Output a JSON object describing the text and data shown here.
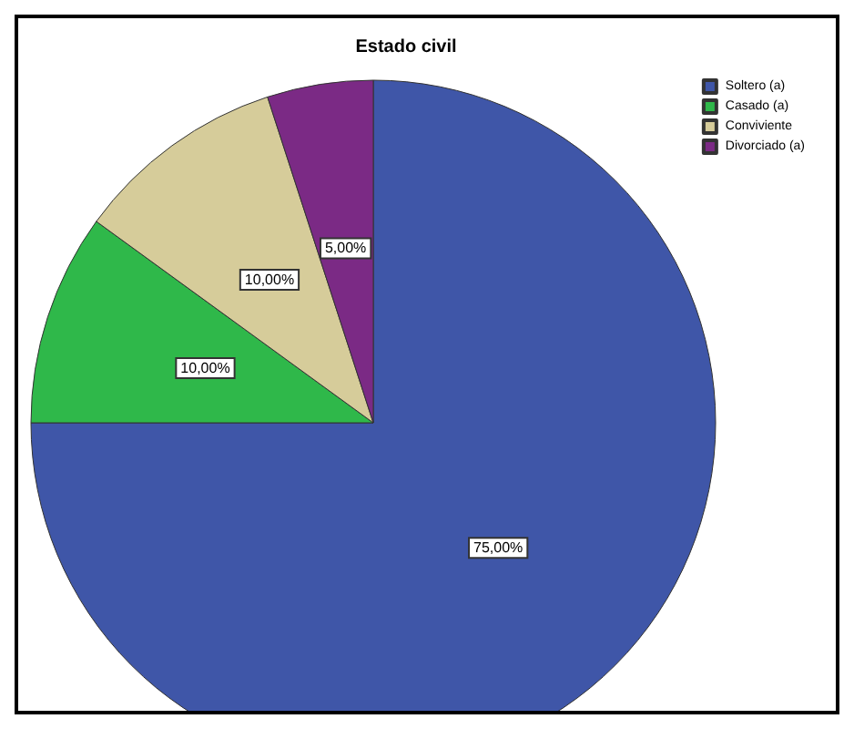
{
  "chart_data": {
    "type": "pie",
    "title": "Estado civil",
    "categories": [
      "Soltero (a)",
      "Casado (a)",
      "Conviviente",
      "Divorciado (a)"
    ],
    "values": [
      75,
      10,
      10,
      5
    ],
    "colors": [
      "#3f56a8",
      "#2fb84a",
      "#d6cc9a",
      "#7b2a85"
    ],
    "value_labels": [
      "75,00%",
      "10,00%",
      "10,00%",
      "5,00%"
    ],
    "legend": "top right"
  }
}
